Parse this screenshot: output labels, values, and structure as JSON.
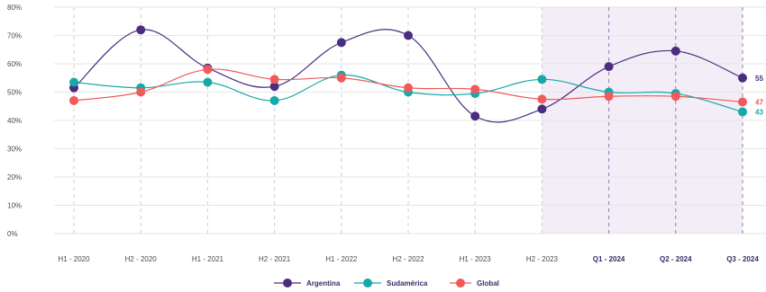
{
  "chart_data": {
    "type": "line",
    "categories": [
      "H1 - 2020",
      "H2 - 2020",
      "H1 - 2021",
      "H2 - 2021",
      "H1 - 2022",
      "H2 - 2022",
      "H1 - 2023",
      "H2 - 2023",
      "Q1 - 2024",
      "Q2 - 2024",
      "Q3 - 2024"
    ],
    "emphasized_categories": [
      "Q1 - 2024",
      "Q2 - 2024",
      "Q3 - 2024"
    ],
    "highlight_start_category": "H2 - 2023",
    "y_ticks": [
      "0%",
      "10%",
      "20%",
      "30%",
      "40%",
      "50%",
      "60%",
      "70%",
      "80%"
    ],
    "ylim": [
      0,
      80
    ],
    "series": [
      {
        "name": "Argentina",
        "color": "#4b2d7f",
        "values": [
          51.5,
          72,
          58.5,
          52,
          67.5,
          70,
          41.5,
          44,
          59,
          64.5,
          55
        ],
        "end_label": "55"
      },
      {
        "name": "Sudamérica",
        "color": "#17a8a8",
        "values": [
          53.5,
          51.5,
          53.5,
          47,
          56,
          50,
          49.5,
          54.5,
          50,
          49.5,
          43
        ],
        "end_label": "43"
      },
      {
        "name": "Global",
        "color": "#f05a5a",
        "values": [
          47,
          50,
          58,
          54.5,
          55,
          51.5,
          51,
          47.5,
          48.5,
          48.5,
          46.5
        ],
        "end_label": "47"
      }
    ],
    "legend_position": "bottom-center",
    "grid": true,
    "highlight_color": "#f2edf6"
  }
}
